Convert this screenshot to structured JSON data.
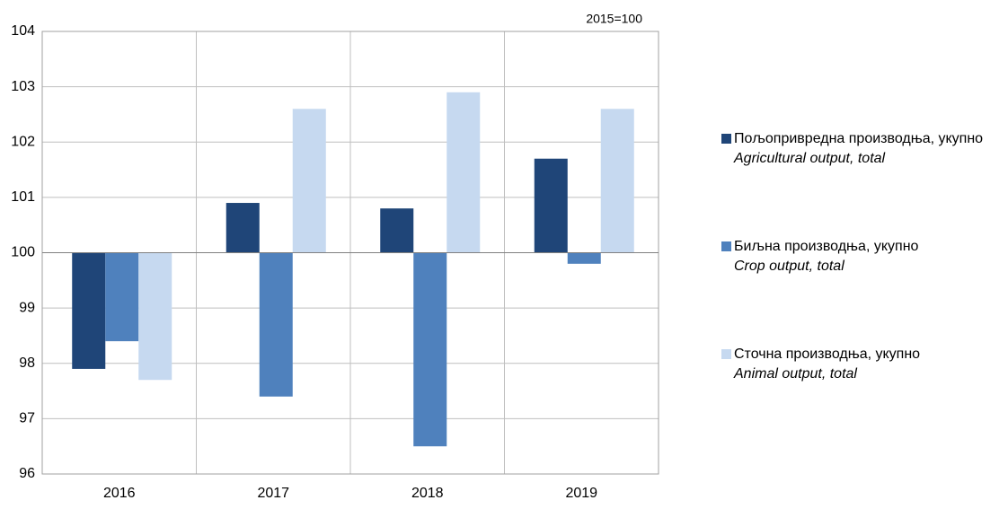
{
  "chart_data": {
    "type": "bar",
    "annotation": "2015=100",
    "categories": [
      "2016",
      "2017",
      "2018",
      "2019"
    ],
    "baseline": 100,
    "series": [
      {
        "name": "Пољопривредна производња, укупно",
        "name_en": "Agricultural output, total",
        "color": "#1f4578",
        "values": [
          97.9,
          100.9,
          100.8,
          101.7
        ]
      },
      {
        "name": "Биљна производња, укупно",
        "name_en": "Crop output, total",
        "color": "#4f81bd",
        "values": [
          98.4,
          97.4,
          96.5,
          99.8
        ]
      },
      {
        "name": "Сточна производња, укупно",
        "name_en": "Animal output, total",
        "color": "#c6d9f0",
        "values": [
          97.7,
          102.6,
          102.9,
          102.6
        ]
      }
    ],
    "ylim": [
      96,
      104
    ],
    "yticks": [
      96,
      97,
      98,
      99,
      100,
      101,
      102,
      103,
      104
    ],
    "grid": true
  }
}
